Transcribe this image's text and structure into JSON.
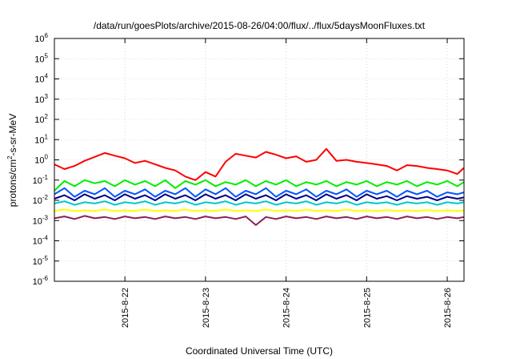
{
  "chart_data": {
    "type": "line",
    "title": "/data/run/goesPlots/archive/2015-08-26/04:00/flux/../flux/5daysMoonFluxes.txt",
    "xlabel": "Coordinated Universal Time (UTC)",
    "ylabel": "protons/cm²-s-sr-MeV",
    "ylabel_parts": {
      "pre": "protons/cm",
      "sup": "2",
      "post": "-s-sr-MeV"
    },
    "yscale": "log",
    "ylim": [
      1e-06,
      1000000.0
    ],
    "xlim": [
      "2015-08-21 03:00",
      "2015-08-26 05:00"
    ],
    "grid": true,
    "y_ticks": [
      {
        "value": 1e-06,
        "base": "10",
        "exp": "-6"
      },
      {
        "value": 1e-05,
        "base": "10",
        "exp": "-5"
      },
      {
        "value": 0.0001,
        "base": "10",
        "exp": "-4"
      },
      {
        "value": 0.001,
        "base": "10",
        "exp": "-3"
      },
      {
        "value": 0.01,
        "base": "10",
        "exp": "-2"
      },
      {
        "value": 0.1,
        "base": "10",
        "exp": "-1"
      },
      {
        "value": 1.0,
        "base": "10",
        "exp": "0"
      },
      {
        "value": 10.0,
        "base": "10",
        "exp": "1"
      },
      {
        "value": 100.0,
        "base": "10",
        "exp": "2"
      },
      {
        "value": 1000.0,
        "base": "10",
        "exp": "3"
      },
      {
        "value": 10000.0,
        "base": "10",
        "exp": "4"
      },
      {
        "value": 100000.0,
        "base": "10",
        "exp": "5"
      },
      {
        "value": 1000000.0,
        "base": "10",
        "exp": "6"
      }
    ],
    "x_ticks": [
      {
        "label": "2015-8-22",
        "value": "2015-08-22 00:00"
      },
      {
        "label": "2015-8-23",
        "value": "2015-08-23 00:00"
      },
      {
        "label": "2015-8-24",
        "value": "2015-08-24 00:00"
      },
      {
        "label": "2015-8-25",
        "value": "2015-08-25 00:00"
      },
      {
        "label": "2015-8-26",
        "value": "2015-08-26 00:00"
      }
    ],
    "x": [
      "2015-08-21 03:00",
      "2015-08-21 06:00",
      "2015-08-21 09:00",
      "2015-08-21 12:00",
      "2015-08-21 15:00",
      "2015-08-21 18:00",
      "2015-08-21 21:00",
      "2015-08-22 00:00",
      "2015-08-22 03:00",
      "2015-08-22 06:00",
      "2015-08-22 09:00",
      "2015-08-22 12:00",
      "2015-08-22 15:00",
      "2015-08-22 18:00",
      "2015-08-22 21:00",
      "2015-08-23 00:00",
      "2015-08-23 03:00",
      "2015-08-23 06:00",
      "2015-08-23 09:00",
      "2015-08-23 12:00",
      "2015-08-23 15:00",
      "2015-08-23 18:00",
      "2015-08-23 21:00",
      "2015-08-24 00:00",
      "2015-08-24 03:00",
      "2015-08-24 06:00",
      "2015-08-24 09:00",
      "2015-08-24 12:00",
      "2015-08-24 15:00",
      "2015-08-24 18:00",
      "2015-08-24 21:00",
      "2015-08-25 00:00",
      "2015-08-25 03:00",
      "2015-08-25 06:00",
      "2015-08-25 09:00",
      "2015-08-25 12:00",
      "2015-08-25 15:00",
      "2015-08-25 18:00",
      "2015-08-25 21:00",
      "2015-08-26 00:00",
      "2015-08-26 03:00",
      "2015-08-26 05:00"
    ],
    "series": [
      {
        "color": "#ff0000",
        "values": [
          0.6,
          0.35,
          0.5,
          0.9,
          1.4,
          2.2,
          1.6,
          1.2,
          0.7,
          0.9,
          0.6,
          0.4,
          0.3,
          0.15,
          0.1,
          0.25,
          0.15,
          0.8,
          2.0,
          1.6,
          1.3,
          2.5,
          1.8,
          1.2,
          1.5,
          0.8,
          1.0,
          3.5,
          0.9,
          1.0,
          0.8,
          0.7,
          0.6,
          0.5,
          0.3,
          0.55,
          0.5,
          0.4,
          0.35,
          0.3,
          0.2,
          0.4
        ]
      },
      {
        "color": "#00ee00",
        "values": [
          0.03,
          0.09,
          0.05,
          0.1,
          0.07,
          0.09,
          0.05,
          0.1,
          0.06,
          0.09,
          0.05,
          0.1,
          0.04,
          0.09,
          0.06,
          0.1,
          0.05,
          0.08,
          0.06,
          0.1,
          0.05,
          0.09,
          0.06,
          0.1,
          0.05,
          0.08,
          0.06,
          0.09,
          0.05,
          0.08,
          0.06,
          0.09,
          0.05,
          0.08,
          0.06,
          0.09,
          0.05,
          0.08,
          0.06,
          0.09,
          0.05,
          0.08
        ]
      },
      {
        "color": "#0055ff",
        "values": [
          0.02,
          0.04,
          0.015,
          0.03,
          0.02,
          0.04,
          0.015,
          0.03,
          0.02,
          0.035,
          0.015,
          0.03,
          0.02,
          0.04,
          0.015,
          0.035,
          0.02,
          0.04,
          0.015,
          0.03,
          0.02,
          0.04,
          0.015,
          0.03,
          0.02,
          0.035,
          0.015,
          0.03,
          0.02,
          0.035,
          0.015,
          0.03,
          0.02,
          0.03,
          0.015,
          0.03,
          0.02,
          0.03,
          0.015,
          0.025,
          0.02,
          0.025
        ]
      },
      {
        "color": "#00008b",
        "values": [
          0.012,
          0.018,
          0.01,
          0.02,
          0.012,
          0.018,
          0.01,
          0.02,
          0.012,
          0.018,
          0.01,
          0.02,
          0.012,
          0.018,
          0.01,
          0.02,
          0.012,
          0.018,
          0.01,
          0.02,
          0.012,
          0.018,
          0.01,
          0.02,
          0.012,
          0.018,
          0.01,
          0.02,
          0.012,
          0.018,
          0.01,
          0.02,
          0.012,
          0.016,
          0.01,
          0.016,
          0.012,
          0.015,
          0.01,
          0.015,
          0.012,
          0.014
        ]
      },
      {
        "color": "#00c8c8",
        "values": [
          0.007,
          0.009,
          0.006,
          0.008,
          0.007,
          0.009,
          0.006,
          0.008,
          0.007,
          0.009,
          0.006,
          0.008,
          0.007,
          0.009,
          0.006,
          0.008,
          0.007,
          0.009,
          0.006,
          0.008,
          0.007,
          0.009,
          0.006,
          0.008,
          0.007,
          0.009,
          0.006,
          0.008,
          0.007,
          0.009,
          0.006,
          0.008,
          0.007,
          0.008,
          0.006,
          0.008,
          0.007,
          0.008,
          0.006,
          0.008,
          0.007,
          0.008
        ]
      },
      {
        "color": "#ffff00",
        "values": [
          0.003,
          0.0035,
          0.003,
          0.0032,
          0.003,
          0.0035,
          0.003,
          0.0032,
          0.003,
          0.0035,
          0.003,
          0.0032,
          0.003,
          0.0035,
          0.003,
          0.0032,
          0.003,
          0.0035,
          0.003,
          0.0032,
          0.003,
          0.0035,
          0.003,
          0.0032,
          0.003,
          0.0035,
          0.003,
          0.0032,
          0.003,
          0.0035,
          0.003,
          0.0032,
          0.003,
          0.0033,
          0.003,
          0.0032,
          0.003,
          0.0033,
          0.003,
          0.0032,
          0.003,
          0.0032
        ]
      },
      {
        "color": "#8b2252",
        "values": [
          0.0013,
          0.0016,
          0.0012,
          0.0017,
          0.0013,
          0.0015,
          0.0012,
          0.0016,
          0.0013,
          0.0015,
          0.0012,
          0.0016,
          0.0013,
          0.0015,
          0.0012,
          0.0016,
          0.0013,
          0.0015,
          0.0012,
          0.0016,
          0.0006,
          0.0015,
          0.0012,
          0.0016,
          0.0013,
          0.0015,
          0.0012,
          0.0016,
          0.0013,
          0.0015,
          0.0012,
          0.0016,
          0.0013,
          0.0015,
          0.0012,
          0.0016,
          0.0013,
          0.0015,
          0.0012,
          0.0015,
          0.0013,
          0.0015
        ]
      }
    ]
  }
}
